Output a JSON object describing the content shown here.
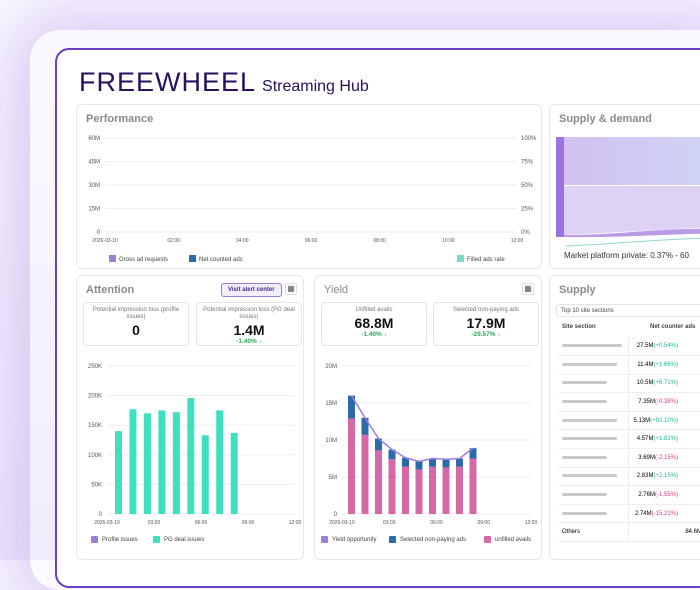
{
  "header": {
    "brand": "FREEWHEEL",
    "product": "Streaming Hub"
  },
  "performance": {
    "title": "Performance",
    "chart_data": {
      "type": "line",
      "y_ticks": [
        "60M",
        "45M",
        "30M",
        "15M",
        "0"
      ],
      "y2_ticks": [
        "100%",
        "75%",
        "50%",
        "25%",
        "0%"
      ],
      "x_ticks": [
        "2026-03-10",
        "02:00",
        "04:00",
        "06:00",
        "08:00",
        "10:00",
        "12:00"
      ],
      "ylim": [
        0,
        60000000
      ],
      "y2lim": [
        0,
        100
      ],
      "grid": true,
      "series": [
        {
          "name": "Gross ad requests",
          "color": "#9b7fd4"
        },
        {
          "name": "Net counted ads",
          "color": "#2d6aa8"
        },
        {
          "name": "Filled ads rate",
          "color": "#7fd8c8"
        }
      ]
    }
  },
  "supply_demand": {
    "title": "Supply & demand",
    "label": "Market platform private: 0.37% - 60"
  },
  "attention": {
    "title": "Attention",
    "alert_button": "Visit alert center",
    "grid_icon": "grid-icon",
    "kpis": [
      {
        "label": "Potential impression loss (profile issues)",
        "value": "0",
        "delta": ""
      },
      {
        "label": "Potential impression loss (PG deal issues)",
        "value": "1.4M",
        "delta": "-1.40% ↓"
      }
    ],
    "chart_data": {
      "type": "bar",
      "y_ticks": [
        "250K",
        "200K",
        "150K",
        "100K",
        "50K",
        "0"
      ],
      "ylim": [
        0,
        250000
      ],
      "x_ticks": [
        "2026-03-10",
        "03:00",
        "06:00",
        "09:00",
        "12:00"
      ],
      "grid": true,
      "legend": "bottom-left",
      "series": [
        {
          "name": "Profile issues",
          "color": "#9b7fd4",
          "values": [
            0,
            0,
            0,
            0,
            0,
            0,
            0,
            0,
            0
          ]
        },
        {
          "name": "PG deal issues",
          "color": "#3fe0c0",
          "values": [
            140000,
            177000,
            170000,
            175000,
            172000,
            196000,
            133000,
            175000,
            137000
          ]
        }
      ]
    }
  },
  "yield": {
    "title": "Yield",
    "grid_icon": "grid-icon",
    "kpis": [
      {
        "label": "Unfilled avails",
        "value": "68.8M",
        "delta": "-1.40% ↓"
      },
      {
        "label": "Selected non-paying ads",
        "value": "17.9M",
        "delta": "-29.57% ↓"
      }
    ],
    "chart_data": {
      "type": "bar",
      "stacked": true,
      "y_ticks": [
        "20M",
        "15M",
        "10M",
        "5M",
        "0"
      ],
      "ylim": [
        0,
        20000000
      ],
      "x_ticks": [
        "2026-03-10",
        "03:00",
        "06:00",
        "09:00",
        "12:00"
      ],
      "grid": true,
      "series": [
        {
          "name": "Yield opportunity",
          "color": "#9b7fe0",
          "type": "line",
          "values": [
            16000000,
            13000000,
            10200000,
            8700000,
            7600000,
            7100000,
            7500000,
            7400000,
            7500000,
            8900000
          ]
        },
        {
          "name": "Selected non-paying ads",
          "color": "#2d6aa8",
          "values": [
            3100000,
            2300000,
            1600000,
            1300000,
            1200000,
            1100000,
            1100000,
            1100000,
            1100000,
            1400000
          ]
        },
        {
          "name": "unfilled avails",
          "color": "#d668a8",
          "values": [
            12900000,
            10700000,
            8600000,
            7400000,
            6400000,
            6000000,
            6400000,
            6300000,
            6400000,
            7500000
          ]
        }
      ]
    }
  },
  "supply": {
    "title": "Supply",
    "subtitle": "Top 10 site sections",
    "col1": "Site section",
    "col2": "Net counter ads",
    "rows": [
      {
        "v": "27.5M",
        "d": "(+0.54%)",
        "pos": true
      },
      {
        "v": "11.4M",
        "d": "(+1.66%)",
        "pos": true
      },
      {
        "v": "10.5M",
        "d": "(+6.71%)",
        "pos": true
      },
      {
        "v": "7.35M",
        "d": "(-0.38%)",
        "pos": false
      },
      {
        "v": "5.13M",
        "d": "(+92.10%)",
        "pos": true
      },
      {
        "v": "4.57M",
        "d": "(+1.81%)",
        "pos": true
      },
      {
        "v": "3.69M",
        "d": "(-2.15%)",
        "pos": false
      },
      {
        "v": "2.83M",
        "d": "(+2.15%)",
        "pos": true
      },
      {
        "v": "2.76M",
        "d": "(-1.55%)",
        "pos": false
      },
      {
        "v": "2.74M",
        "d": "(-15.21%)",
        "pos": false
      }
    ],
    "others_label": "Others",
    "others_value": "84.6M"
  }
}
